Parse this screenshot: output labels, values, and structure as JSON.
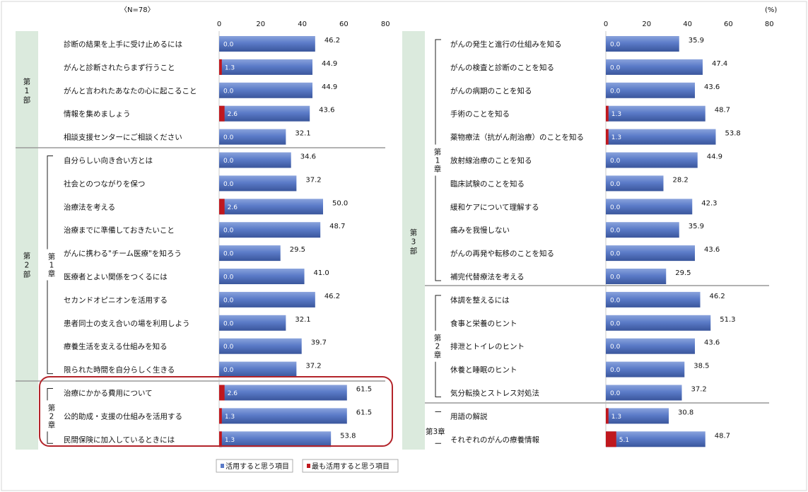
{
  "n_label": "〈N=78〉",
  "unit_label": "(%)",
  "colors": {
    "blue": "#5b7bc8",
    "blue_dark": "#3f5da8",
    "red": "#c0181e",
    "sidebar": "#dbeadd",
    "highlight": "#b3242a"
  },
  "chart_data": [
    {
      "type": "bar",
      "stacked": true,
      "xlim": [
        0,
        80
      ],
      "xticks": [
        0,
        20,
        40,
        60,
        80
      ],
      "series": [
        {
          "name": "活用すると思う項目"
        },
        {
          "name": "最も活用すると思う項目"
        }
      ],
      "groups": [
        {
          "label": "第\n1\n部",
          "items": [
            {
              "label": "診断の結果を上手に受け止めるには",
              "total": 46.2,
              "most": 0.0
            },
            {
              "label": "がんと診断されたらまず行うこと",
              "total": 44.9,
              "most": 1.3
            },
            {
              "label": "がんと言われたあなたの心に起こること",
              "total": 44.9,
              "most": 0.0
            },
            {
              "label": "情報を集めましょう",
              "total": 43.6,
              "most": 2.6
            },
            {
              "label": "相談支援センターにご相談ください",
              "total": 32.1,
              "most": 0.0
            }
          ]
        },
        {
          "label": "第\n2\n部",
          "sub": "第\n1\n章",
          "items": [
            {
              "label": "自分らしい向き合い方とは",
              "total": 34.6,
              "most": 0.0
            },
            {
              "label": "社会とのつながりを保つ",
              "total": 37.2,
              "most": 0.0
            },
            {
              "label": "治療法を考える",
              "total": 50.0,
              "most": 2.6
            },
            {
              "label": "治療までに準備しておきたいこと",
              "total": 48.7,
              "most": 0.0
            },
            {
              "label": "がんに携わる\"チーム医療\"を知ろう",
              "total": 29.5,
              "most": 0.0
            },
            {
              "label": "医療者とよい関係をつくるには",
              "total": 41.0,
              "most": 0.0
            },
            {
              "label": "セカンドオピニオンを活用する",
              "total": 46.2,
              "most": 0.0
            },
            {
              "label": "患者同士の支え合いの場を利用しよう",
              "total": 32.1,
              "most": 0.0
            },
            {
              "label": "療養生活を支える仕組みを知る",
              "total": 39.7,
              "most": 0.0
            },
            {
              "label": "限られた時間を自分らしく生きる",
              "total": 37.2,
              "most": 0.0
            }
          ]
        },
        {
          "sub": "第\n2\n章",
          "items": [
            {
              "label": "治療にかかる費用について",
              "total": 61.5,
              "most": 2.6
            },
            {
              "label": "公的助成・支援の仕組みを活用する",
              "total": 61.5,
              "most": 1.3
            },
            {
              "label": "民間保険に加入しているときには",
              "total": 53.8,
              "most": 1.3
            }
          ]
        }
      ]
    },
    {
      "type": "bar",
      "stacked": true,
      "xlim": [
        0,
        80
      ],
      "xticks": [
        0,
        20,
        40,
        60,
        80
      ],
      "groups": [
        {
          "label": "第\n3\n部",
          "sub": "第\n1\n章",
          "items": [
            {
              "label": "がんの発生と進行の仕組みを知る",
              "total": 35.9,
              "most": 0.0
            },
            {
              "label": "がんの検査と診断のことを知る",
              "total": 47.4,
              "most": 0.0
            },
            {
              "label": "がんの病期のことを知る",
              "total": 43.6,
              "most": 0.0
            },
            {
              "label": "手術のことを知る",
              "total": 48.7,
              "most": 1.3
            },
            {
              "label": "薬物療法（抗がん剤治療）のことを知る",
              "total": 53.8,
              "most": 1.3
            },
            {
              "label": "放射線治療のことを知る",
              "total": 44.9,
              "most": 0.0
            },
            {
              "label": "臨床試験のことを知る",
              "total": 28.2,
              "most": 0.0
            },
            {
              "label": "緩和ケアについて理解する",
              "total": 42.3,
              "most": 0.0
            },
            {
              "label": "痛みを我慢しない",
              "total": 35.9,
              "most": 0.0
            },
            {
              "label": "がんの再発や転移のことを知る",
              "total": 43.6,
              "most": 0.0
            },
            {
              "label": "補完代替療法を考える",
              "total": 29.5,
              "most": 0.0
            }
          ]
        },
        {
          "sub": "第\n2\n章",
          "items": [
            {
              "label": "体調を整えるには",
              "total": 46.2,
              "most": 0.0
            },
            {
              "label": "食事と栄養のヒント",
              "total": 51.3,
              "most": 0.0
            },
            {
              "label": "排泄とトイレのヒント",
              "total": 43.6,
              "most": 0.0
            },
            {
              "label": "休養と睡眠のヒント",
              "total": 38.5,
              "most": 0.0
            },
            {
              "label": "気分転換とストレス対処法",
              "total": 37.2,
              "most": 0.0
            }
          ]
        },
        {
          "sub": "第3章",
          "items": [
            {
              "label": "用語の解説",
              "total": 30.8,
              "most": 1.3
            },
            {
              "label": "それぞれのがんの療養情報",
              "total": 48.7,
              "most": 5.1
            }
          ]
        }
      ]
    }
  ],
  "legend": [
    {
      "label": "活用すると思う項目",
      "color": "#5b7bc8"
    },
    {
      "label": "最も活用すると思う項目",
      "color": "#c0181e"
    }
  ]
}
